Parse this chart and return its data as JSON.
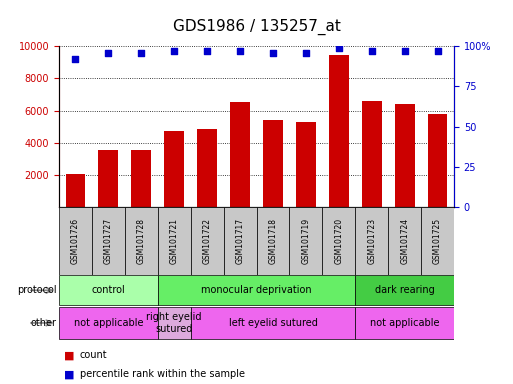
{
  "title": "GDS1986 / 135257_at",
  "samples": [
    "GSM101726",
    "GSM101727",
    "GSM101728",
    "GSM101721",
    "GSM101722",
    "GSM101717",
    "GSM101718",
    "GSM101719",
    "GSM101720",
    "GSM101723",
    "GSM101724",
    "GSM101725"
  ],
  "counts": [
    2050,
    3530,
    3530,
    4730,
    4850,
    6530,
    5430,
    5300,
    9450,
    6590,
    6380,
    5760
  ],
  "percentiles": [
    92,
    96,
    96,
    97,
    97,
    97,
    96,
    96,
    99,
    97,
    97,
    97
  ],
  "bar_color": "#cc0000",
  "dot_color": "#0000cc",
  "ylim_left": [
    0,
    10000
  ],
  "ylim_right": [
    0,
    100
  ],
  "yticks_left": [
    2000,
    4000,
    6000,
    8000,
    10000
  ],
  "yticks_right": [
    0,
    25,
    50,
    75,
    100
  ],
  "protocol_groups": [
    {
      "label": "control",
      "start": 0,
      "end": 3,
      "color": "#aaffaa"
    },
    {
      "label": "monocular deprivation",
      "start": 3,
      "end": 9,
      "color": "#66ee66"
    },
    {
      "label": "dark rearing",
      "start": 9,
      "end": 12,
      "color": "#44cc44"
    }
  ],
  "other_groups": [
    {
      "label": "not applicable",
      "start": 0,
      "end": 3,
      "color": "#ee66ee"
    },
    {
      "label": "right eyelid\nsutured",
      "start": 3,
      "end": 4,
      "color": "#ddaadd"
    },
    {
      "label": "left eyelid sutured",
      "start": 4,
      "end": 9,
      "color": "#ee66ee"
    },
    {
      "label": "not applicable",
      "start": 9,
      "end": 12,
      "color": "#ee66ee"
    }
  ],
  "legend_count_label": "count",
  "legend_pct_label": "percentile rank within the sample",
  "protocol_label": "protocol",
  "other_label": "other",
  "title_fontsize": 11,
  "tick_fontsize": 7,
  "sample_fontsize": 5.5,
  "annot_fontsize": 7,
  "legend_fontsize": 7,
  "label_color_gray": "#c8c8c8",
  "background_color": "#ffffff"
}
